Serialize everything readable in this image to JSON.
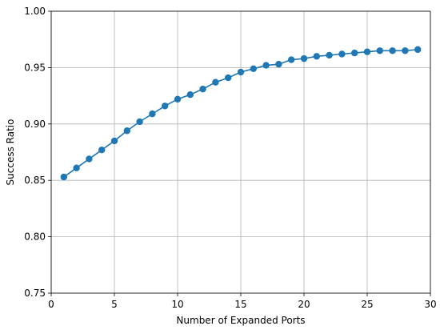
{
  "chart_data": {
    "type": "line",
    "title": "",
    "xlabel": "Number of Expanded Ports",
    "ylabel": "Success Ratio",
    "xlim": [
      0,
      30
    ],
    "ylim": [
      0.75,
      1.0
    ],
    "xticks": [
      0,
      5,
      10,
      15,
      20,
      25,
      30
    ],
    "xtick_labels": [
      "0",
      "5",
      "10",
      "15",
      "20",
      "25",
      "30"
    ],
    "yticks": [
      0.75,
      0.8,
      0.85,
      0.9,
      0.95,
      1.0
    ],
    "ytick_labels": [
      "0.75",
      "0.80",
      "0.85",
      "0.90",
      "0.95",
      "1.00"
    ],
    "grid": true,
    "legend": "none",
    "series": [
      {
        "color": "#1f77b4",
        "marker": "circle",
        "x": [
          1,
          2,
          3,
          4,
          5,
          6,
          7,
          8,
          9,
          10,
          11,
          12,
          13,
          14,
          15,
          16,
          17,
          18,
          19,
          20,
          21,
          22,
          23,
          24,
          25,
          26,
          27,
          28,
          29
        ],
        "y": [
          0.853,
          0.861,
          0.869,
          0.877,
          0.885,
          0.894,
          0.902,
          0.909,
          0.916,
          0.922,
          0.926,
          0.931,
          0.937,
          0.941,
          0.946,
          0.949,
          0.952,
          0.953,
          0.957,
          0.958,
          0.96,
          0.961,
          0.962,
          0.963,
          0.964,
          0.965,
          0.965,
          0.965,
          0.966
        ]
      }
    ]
  }
}
